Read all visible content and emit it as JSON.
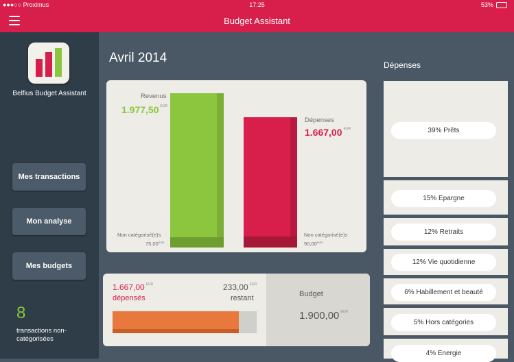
{
  "status": {
    "carrier": "●●●○○ Proximus",
    "time": "17:25",
    "battery": "53%"
  },
  "nav": {
    "title": "Budget Assistant"
  },
  "sidebar": {
    "app_name": "Belfius Budget Assistant",
    "buttons": [
      "Mes transactions",
      "Mon analyse",
      "Mes budgets"
    ],
    "uncategorized_count": "8",
    "uncategorized_label": "transactions non-catégorisées"
  },
  "main": {
    "month": "Avril 2014",
    "revenus": {
      "label": "Revenus",
      "value": "1.977,50",
      "currency": "EUR",
      "uncat_label": "Non catégorisé(e)s",
      "uncat_value": "75,00",
      "uncat_currency": "EUR"
    },
    "depenses": {
      "label": "Dépenses",
      "value": "1.667,00",
      "currency": "EUR",
      "uncat_label": "Non catégorisé(e)s",
      "uncat_value": "90,00",
      "uncat_currency": "EUR"
    },
    "budget": {
      "spent_value": "1.667,00",
      "spent_currency": "EUR",
      "spent_label": "dépensés",
      "remaining_value": "233,00",
      "remaining_currency": "EUR",
      "remaining_label": "restant",
      "budget_label": "Budget",
      "budget_value": "1.900,00",
      "budget_currency": "EUR",
      "progress_fraction": 0.877
    }
  },
  "depenses_panel": {
    "title": "Dépenses",
    "items": [
      "39% Prêts",
      "15% Epargne",
      "12% Retraits",
      "12% Vie quotidienne",
      "6% Habillement et beauté",
      "5% Hors catégories",
      "4% Energie"
    ]
  },
  "colors": {
    "brand": "#d81e4b",
    "green": "#8cc63f",
    "red": "#d81e4b",
    "orange": "#e8783c"
  }
}
